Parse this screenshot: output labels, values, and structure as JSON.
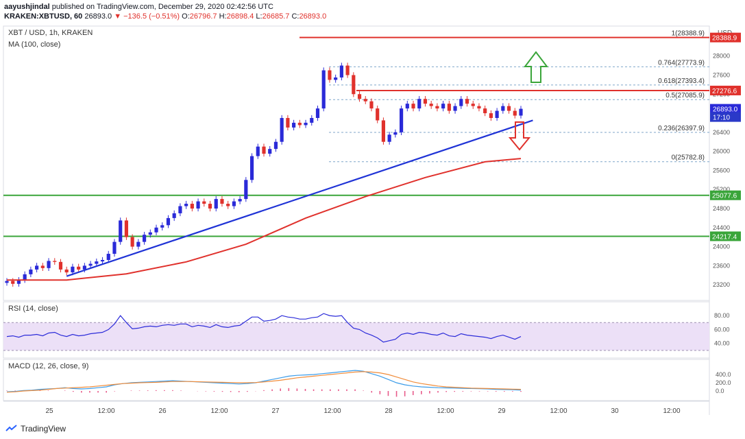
{
  "header": {
    "line1_user": "aayushjindal",
    "line1_rest": "published on TradingView.com, December 29, 2020 02:42:56 UTC",
    "line2_symbol": "KRAKEN:XBTUSD, 60",
    "line2_price": "26893.0",
    "line2_change": "▼ −136.5 (−0.51%)",
    "line2_o_label": "O:",
    "line2_o": "26796.7",
    "line2_h_label": "H:",
    "line2_h": "26898.4",
    "line2_l_label": "L:",
    "line2_l": "26685.7",
    "line2_c_label": "C:",
    "line2_c": "26893.0"
  },
  "legend": {
    "symbol": "XBT / USD, 1h, KRAKEN",
    "ma": "MA (100, close)",
    "rsi": "RSI (14, close)",
    "macd": "MACD (12, 26, close, 9)"
  },
  "footer": {
    "brand": "TradingView"
  },
  "colors": {
    "up": "#2a2ad8",
    "down": "#e0312c",
    "trend": "#1f33d6",
    "ma": "#e0312c",
    "resistance": "#e0312c",
    "support": "#3aa53a",
    "rsi": "#2b2bd9",
    "macd": "#3a9be8",
    "signal": "#f08c3a",
    "arrow_up": "#3aa53a",
    "arrow_down": "#e0312c"
  },
  "chart_data": [
    {
      "type": "candlestick",
      "title": "XBT / USD, 1h, KRAKEN",
      "currency": "USD",
      "ylim": [
        22900,
        28600
      ],
      "yticks": [
        23200,
        23600,
        24000,
        24400,
        24800,
        25200,
        25600,
        26000,
        26400,
        26800,
        27200,
        27600,
        28000
      ],
      "xticks": [
        "25",
        "12:00",
        "26",
        "12:00",
        "27",
        "12:00",
        "28",
        "12:00",
        "29",
        "12:00",
        "30",
        "12:00"
      ],
      "closes": [
        23280,
        23220,
        23300,
        23420,
        23520,
        23600,
        23550,
        23700,
        23680,
        23520,
        23460,
        23580,
        23520,
        23600,
        23640,
        23690,
        23720,
        23850,
        24100,
        24550,
        24200,
        24000,
        24100,
        24250,
        24300,
        24400,
        24450,
        24600,
        24700,
        24850,
        24900,
        24800,
        24950,
        24900,
        24800,
        25000,
        24900,
        24850,
        24950,
        25000,
        25400,
        25900,
        26100,
        25950,
        26050,
        26200,
        26700,
        26500,
        26600,
        26550,
        26600,
        26700,
        26900,
        27700,
        27500,
        27550,
        27800,
        27600,
        27200,
        27100,
        27050,
        26900,
        26650,
        26200,
        26350,
        26400,
        26900,
        27000,
        26900,
        27100,
        27000,
        26950,
        26900,
        27000,
        26850,
        26950,
        27100,
        27000,
        26950,
        26900,
        26800,
        26700,
        26850,
        26950,
        26850,
        26750,
        26893
      ],
      "ma_100": {
        "x": [
          0,
          10,
          20,
          30,
          40,
          50,
          60,
          70,
          80,
          86
        ],
        "y": [
          23300,
          23300,
          23430,
          23680,
          24050,
          24600,
          25050,
          25450,
          25780,
          25850
        ]
      },
      "hlines": [
        {
          "label": "28388.9",
          "value": 28388.9,
          "color": "red"
        },
        {
          "label": "27276.6",
          "value": 27276.6,
          "color": "red"
        },
        {
          "label": "25077.6",
          "value": 25077.6,
          "color": "green"
        },
        {
          "label": "24217.4",
          "value": 24217.4,
          "color": "green"
        }
      ],
      "fib_levels": [
        {
          "label": "1(28388.9)",
          "value": 28388.9
        },
        {
          "label": "0.764(27773.9)",
          "value": 27773.9
        },
        {
          "label": "0.618(27393.4)",
          "value": 27393.4
        },
        {
          "label": "0.5(27085.9)",
          "value": 27085.9
        },
        {
          "label": "0.236(26397.9)",
          "value": 26397.9
        },
        {
          "label": "0(25782.8)",
          "value": 25782.8
        }
      ],
      "trendline": {
        "x": [
          10,
          88
        ],
        "y": [
          23380,
          26650
        ]
      },
      "price_tags": [
        {
          "text": "26893.0",
          "value": 26893.0
        },
        {
          "text": "17:10",
          "value": 26720
        }
      ]
    },
    {
      "type": "line",
      "title": "RSI (14, close)",
      "ylim": [
        23,
        88
      ],
      "yticks": [
        40,
        60,
        80
      ],
      "band": [
        30,
        70
      ],
      "values": [
        50,
        51,
        49,
        52,
        52,
        53,
        51,
        55,
        56,
        52,
        50,
        53,
        51,
        52,
        54,
        55,
        56,
        60,
        68,
        80,
        70,
        61,
        62,
        64,
        65,
        64,
        66,
        67,
        66,
        68,
        68,
        64,
        66,
        65,
        63,
        67,
        64,
        63,
        65,
        66,
        72,
        78,
        78,
        72,
        73,
        75,
        80,
        78,
        77,
        75,
        75,
        77,
        78,
        83,
        80,
        79,
        80,
        70,
        62,
        60,
        55,
        52,
        48,
        42,
        44,
        46,
        53,
        55,
        53,
        56,
        55,
        53,
        52,
        55,
        51,
        50,
        54,
        52,
        51,
        50,
        49,
        47,
        50,
        52,
        49,
        46,
        50
      ]
    },
    {
      "type": "line",
      "title": "MACD (12, 26, close, 9)",
      "ylim": [
        -200,
        700
      ],
      "yticks": [
        0,
        200,
        400
      ],
      "macd": [
        -20,
        -10,
        10,
        20,
        40,
        50,
        60,
        80,
        60,
        50,
        60,
        80,
        100,
        150,
        180,
        200,
        210,
        220,
        230,
        240,
        250,
        240,
        230,
        220,
        210,
        200,
        190,
        180,
        170,
        180,
        200,
        240,
        280,
        320,
        360,
        380,
        390,
        400,
        420,
        440,
        460,
        480,
        500,
        480,
        420,
        360,
        280,
        200,
        150,
        120,
        100,
        90,
        80,
        75,
        70,
        65,
        60,
        55,
        50,
        40,
        35,
        30,
        20
      ],
      "signal": [
        -30,
        -20,
        0,
        10,
        20,
        40,
        60,
        70,
        80,
        90,
        100,
        120,
        140,
        160,
        180,
        190,
        200,
        205,
        210,
        220,
        230,
        230,
        230,
        225,
        220,
        215,
        210,
        205,
        200,
        200,
        205,
        220,
        240,
        260,
        290,
        320,
        340,
        360,
        380,
        400,
        420,
        440,
        460,
        470,
        460,
        440,
        400,
        340,
        280,
        220,
        180,
        150,
        120,
        100,
        90,
        80,
        70,
        65,
        60,
        55,
        50,
        45,
        40
      ]
    }
  ]
}
